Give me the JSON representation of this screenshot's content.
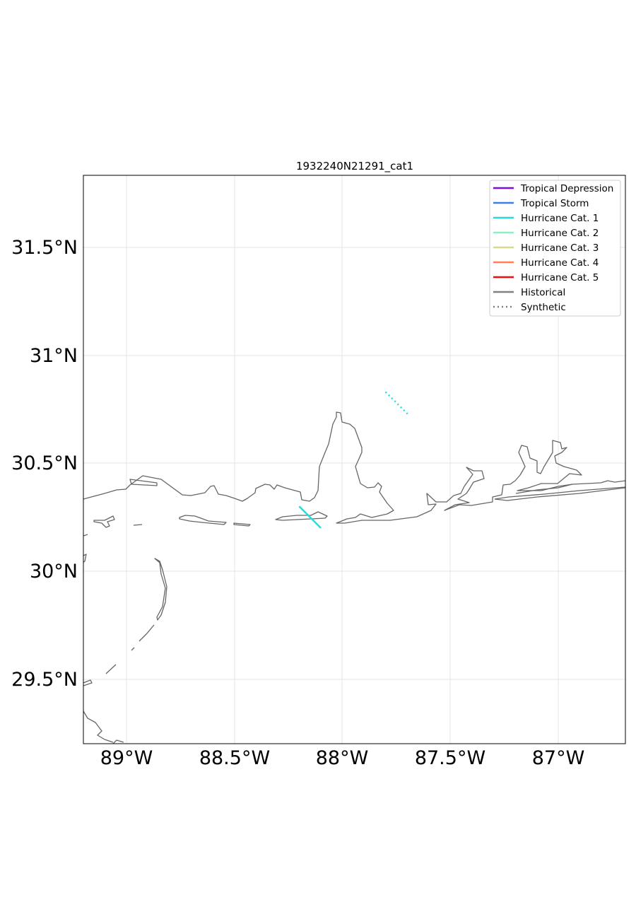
{
  "map": {
    "title": "1932240N21291_cat1",
    "lon_labels": [
      "89°W",
      "88.5°W",
      "88°W",
      "87.5°W",
      "87°W"
    ],
    "lat_labels": [
      "29.5°N",
      "30°N",
      "30.5°N",
      "31°N",
      "31.5°N"
    ],
    "legend": [
      {
        "label": "Tropical Depression",
        "color": "#7b0fe0",
        "style": "solid"
      },
      {
        "label": "Tropical Storm",
        "color": "#3f7fe8",
        "style": "solid"
      },
      {
        "label": "Hurricane Cat. 1",
        "color": "#2fd8d8",
        "style": "solid"
      },
      {
        "label": "Hurricane Cat. 2",
        "color": "#8ef0c0",
        "style": "solid"
      },
      {
        "label": "Hurricane Cat. 3",
        "color": "#d8d890",
        "style": "solid"
      },
      {
        "label": "Hurricane Cat. 4",
        "color": "#ff8050",
        "style": "solid"
      },
      {
        "label": "Hurricane Cat. 5",
        "color": "#e81010",
        "style": "solid"
      },
      {
        "label": "Historical",
        "color": "#808080",
        "style": "solid"
      },
      {
        "label": "Synthetic",
        "color": "#808080",
        "style": "dotted"
      }
    ],
    "tracks": [
      {
        "type": "historical",
        "category": "Hurricane Cat. 1",
        "color": "#2fd8d8",
        "points": [
          {
            "lon": -88.2,
            "lat": 30.3
          },
          {
            "lon": -88.1,
            "lat": 30.2
          }
        ]
      },
      {
        "type": "synthetic",
        "category": "Hurricane Cat. 1",
        "color": "#2fd8d8",
        "points": [
          {
            "lon": -87.8,
            "lat": 30.83
          },
          {
            "lon": -87.69,
            "lat": 30.72
          }
        ]
      }
    ]
  }
}
